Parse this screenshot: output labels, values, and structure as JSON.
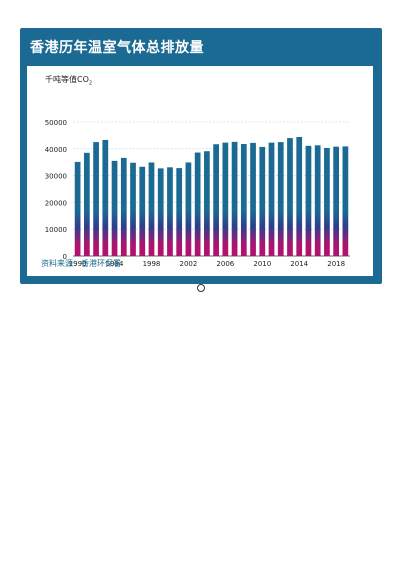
{
  "title": "香港历年温室气体总排放量",
  "unit": {
    "prefix": "千吨等值CO",
    "subscript": "2"
  },
  "source": "资料来源：香港环保署",
  "colors": {
    "panel": "#1b6a93",
    "bar_top": "#1b6a93",
    "bar_mid": "#2e3f8f",
    "bar_bottom": "#b0136e",
    "grid": "#b8d4e6"
  },
  "chart_data": {
    "type": "bar",
    "title": "香港历年温室气体总排放量",
    "ylabel": "千吨等值CO2",
    "xlabel": "",
    "categories": [
      "1990",
      "1991",
      "1992",
      "1993",
      "1994",
      "1995",
      "1996",
      "1997",
      "1998",
      "1999",
      "2000",
      "2001",
      "2002",
      "2003",
      "2004",
      "2005",
      "2006",
      "2007",
      "2008",
      "2009",
      "2010",
      "2011",
      "2012",
      "2013",
      "2014",
      "2015",
      "2016",
      "2017",
      "2018",
      "2019"
    ],
    "values": [
      35100,
      38500,
      42500,
      43300,
      35500,
      36600,
      34800,
      33300,
      34900,
      32700,
      33100,
      32800,
      34900,
      38600,
      39100,
      41700,
      42300,
      42600,
      41800,
      42200,
      40700,
      42300,
      42500,
      44000,
      44400,
      41100,
      41300,
      40300,
      40800,
      40900
    ],
    "x_tick_labels": [
      "1990",
      "1994",
      "1998",
      "2002",
      "2006",
      "2010",
      "2014",
      "2018"
    ],
    "y_ticks": [
      0,
      10000,
      20000,
      30000,
      40000,
      50000
    ],
    "ylim": [
      0,
      50000
    ],
    "grid": true,
    "legend": "none"
  }
}
